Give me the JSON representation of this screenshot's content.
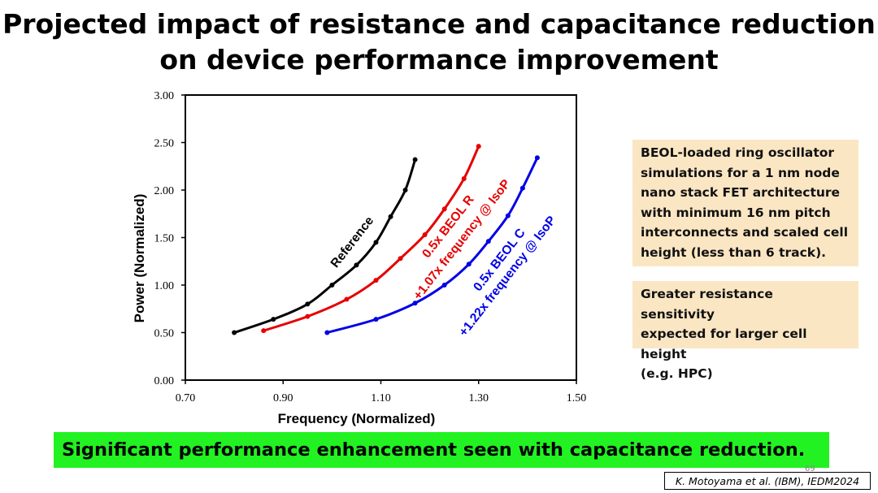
{
  "slide": {
    "title_line1": "Projected impact of resistance and capacitance reduction",
    "title_line2": "on device performance improvement",
    "box1_lines": [
      "BEOL-loaded ring oscillator",
      "simulations for a 1 nm node",
      "nano stack FET architecture",
      "with minimum 16 nm pitch",
      "interconnects and scaled cell",
      "height (less than 6 track)."
    ],
    "box2_lines": [
      "Greater resistance sensitivity",
      "expected for larger cell height",
      "(e.g. HPC)"
    ],
    "banner": "Significant performance enhancement seen with capacitance reduction.",
    "citation": "K. Motoyama et al. (IBM), IEDM2024",
    "page_number": "69",
    "colors": {
      "box_bg": "#fbe6c3",
      "banner_bg": "#22f222"
    }
  },
  "chart_data": {
    "type": "line",
    "xlabel": "Frequency (Normalized)",
    "ylabel": "Power (Normalized)",
    "xlim": [
      0.7,
      1.5
    ],
    "ylim": [
      0.0,
      3.0
    ],
    "xticks": [
      "0.70",
      "0.90",
      "1.10",
      "1.30",
      "1.50"
    ],
    "yticks": [
      "0.00",
      "0.50",
      "1.00",
      "1.50",
      "2.00",
      "2.50",
      "3.00"
    ],
    "grid": false,
    "series": [
      {
        "color": "#000000",
        "x": [
          0.8,
          0.88,
          0.95,
          1.0,
          1.05,
          1.09,
          1.12,
          1.15,
          1.17
        ],
        "y": [
          0.5,
          0.64,
          0.8,
          1.0,
          1.21,
          1.45,
          1.72,
          2.0,
          2.32
        ],
        "annotation": [
          "Reference"
        ]
      },
      {
        "color": "#e60000",
        "x": [
          0.86,
          0.95,
          1.03,
          1.09,
          1.14,
          1.19,
          1.23,
          1.27,
          1.3
        ],
        "y": [
          0.52,
          0.67,
          0.85,
          1.05,
          1.28,
          1.53,
          1.8,
          2.12,
          2.46
        ],
        "annotation": [
          "0.5x BEOL R",
          "+1.07x frequency @ IsoP"
        ]
      },
      {
        "color": "#0000e6",
        "x": [
          0.99,
          1.09,
          1.17,
          1.23,
          1.28,
          1.32,
          1.36,
          1.39,
          1.42
        ],
        "y": [
          0.5,
          0.64,
          0.81,
          1.0,
          1.22,
          1.46,
          1.73,
          2.02,
          2.34
        ],
        "annotation": [
          "0.5x BEOL C",
          "+1.22x frequency @ IsoP"
        ]
      }
    ]
  }
}
